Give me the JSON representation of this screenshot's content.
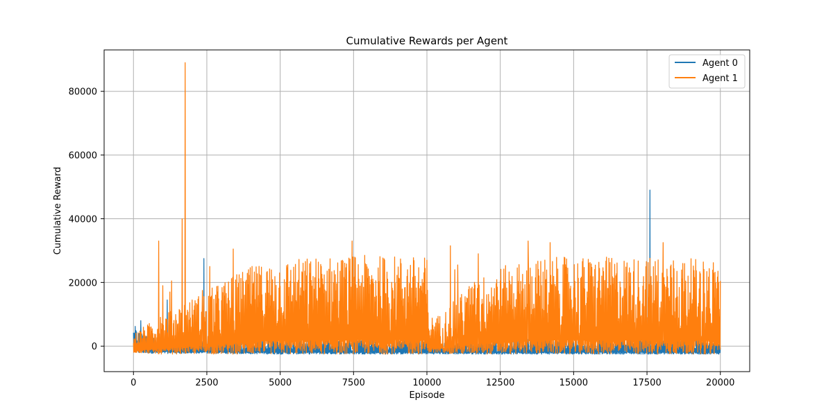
{
  "chart_data": {
    "type": "line",
    "title": "Cumulative Rewards per Agent",
    "xlabel": "Episode",
    "ylabel": "Cumulative Reward",
    "xlim": [
      -1000,
      21000
    ],
    "ylim": [
      -8000,
      93000
    ],
    "xticks": [
      0,
      2500,
      5000,
      7500,
      10000,
      12500,
      15000,
      17500,
      20000
    ],
    "yticks": [
      0,
      20000,
      40000,
      60000,
      80000
    ],
    "xtick_labels": [
      "0",
      "2500",
      "5000",
      "7500",
      "10000",
      "12500",
      "15000",
      "17500",
      "20000"
    ],
    "ytick_labels": [
      "0",
      "20000",
      "40000",
      "60000",
      "80000"
    ],
    "grid": true,
    "legend_position": "upper right",
    "series": [
      {
        "name": "Agent 0",
        "color": "#1f77b4",
        "envelope": {
          "x": [
            0,
            300,
            1000,
            2500,
            5000,
            7500,
            10000,
            12500,
            15000,
            17500,
            20000
          ],
          "high": [
            6000,
            4000,
            2500,
            2000,
            2500,
            2500,
            2200,
            2000,
            2500,
            2500,
            1500
          ],
          "low": [
            -2000,
            -2200,
            -2300,
            -2300,
            -2500,
            -2500,
            -2500,
            -2500,
            -2500,
            -2500,
            -2500
          ]
        },
        "spikes": [
          {
            "x": 60,
            "y": 6200
          },
          {
            "x": 250,
            "y": 8000
          },
          {
            "x": 1150,
            "y": 14500
          },
          {
            "x": 2400,
            "y": 27500
          },
          {
            "x": 17600,
            "y": 49000
          }
        ]
      },
      {
        "name": "Agent 1",
        "color": "#ff7f0e",
        "envelope": {
          "x": [
            0,
            500,
            1000,
            2000,
            3000,
            4000,
            5000,
            6000,
            7500,
            9000,
            10000,
            10050,
            10500,
            11000,
            11500,
            12500,
            13500,
            14500,
            16000,
            18000,
            20000
          ],
          "high": [
            4000,
            7000,
            10000,
            15000,
            20000,
            25000,
            27000,
            28000,
            28500,
            28500,
            28000,
            9000,
            10000,
            15000,
            20000,
            25000,
            27000,
            28000,
            28000,
            28000,
            27000
          ],
          "low": [
            -2000,
            -2200,
            -2500,
            -2500,
            -2500,
            -2500,
            -2500,
            -2500,
            -2500,
            -2500,
            -2500,
            -2000,
            -2200,
            -2500,
            -2500,
            -2500,
            -2500,
            -2500,
            -2500,
            -2500,
            -2500
          ]
        },
        "spikes": [
          {
            "x": 860,
            "y": 33000
          },
          {
            "x": 1000,
            "y": 19000
          },
          {
            "x": 1240,
            "y": 17000
          },
          {
            "x": 1300,
            "y": 20500
          },
          {
            "x": 1660,
            "y": 40000
          },
          {
            "x": 1760,
            "y": 89000
          },
          {
            "x": 2350,
            "y": 17500
          },
          {
            "x": 2600,
            "y": 25000
          },
          {
            "x": 3400,
            "y": 30500
          },
          {
            "x": 7450,
            "y": 33000
          },
          {
            "x": 10800,
            "y": 31500
          },
          {
            "x": 10950,
            "y": 24000
          },
          {
            "x": 11050,
            "y": 25500
          },
          {
            "x": 11750,
            "y": 29000
          },
          {
            "x": 13450,
            "y": 33000
          },
          {
            "x": 14200,
            "y": 32500
          },
          {
            "x": 18050,
            "y": 32500
          }
        ]
      }
    ]
  }
}
